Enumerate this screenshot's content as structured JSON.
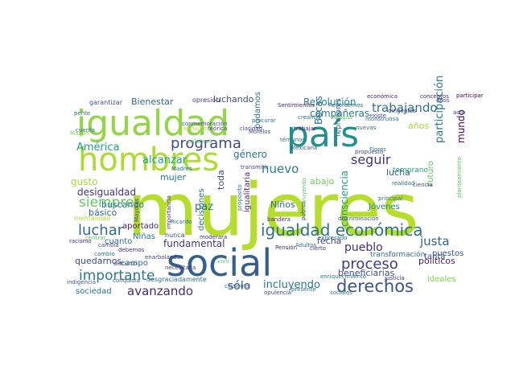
{
  "word_cloud": {
    "colormap": "viridis",
    "background": "#ffffff",
    "words": [
      {
        "text": "mujeres",
        "color": "#b5de2b"
      },
      {
        "text": "social",
        "color": "#35608d"
      },
      {
        "text": "país",
        "color": "#21918c"
      },
      {
        "text": "hombres",
        "color": "#addc30"
      },
      {
        "text": "igualdad",
        "color": "#90d743"
      },
      {
        "text": "igualdad económica",
        "color": "#2c728e"
      },
      {
        "text": "derechos",
        "color": "#3b528b"
      },
      {
        "text": "proceso",
        "color": "#443983"
      },
      {
        "text": "luchar",
        "color": "#31688e"
      },
      {
        "text": "siempre",
        "color": "#5ec962"
      },
      {
        "text": "programa",
        "color": "#3e4989"
      },
      {
        "text": "importante",
        "color": "#2a788e"
      },
      {
        "text": "avanzando",
        "color": "#482878"
      },
      {
        "text": "nuevo",
        "color": "#287c8e"
      },
      {
        "text": "trabajando",
        "color": "#2c728e"
      },
      {
        "text": "pueblo",
        "color": "#472d7b"
      },
      {
        "text": "justa",
        "color": "#35608d"
      },
      {
        "text": "seguir",
        "color": "#46327e"
      },
      {
        "text": "mundo",
        "color": "#440154"
      },
      {
        "text": "América",
        "color": "#1fa187"
      },
      {
        "text": "alcanzar",
        "color": "#20a386"
      },
      {
        "text": "Revolución",
        "color": "#25848e"
      },
      {
        "text": "sólo",
        "color": "#3b528b"
      },
      {
        "text": "incluyendo",
        "color": "#2a788e"
      },
      {
        "text": "participación",
        "color": "#2a788e"
      },
      {
        "text": "consciencia",
        "color": "#1fa187"
      },
      {
        "text": "paz",
        "color": "#2c728e"
      },
      {
        "text": "luchando",
        "color": "#3e4989"
      },
      {
        "text": "lucha",
        "color": "#35608d"
      },
      {
        "text": "fundamental",
        "color": "#453781"
      },
      {
        "text": "desigualdad",
        "color": "#46327e"
      },
      {
        "text": "género",
        "color": "#2c728e"
      },
      {
        "text": "compañeras",
        "color": "#2a788e"
      },
      {
        "text": "beneficiarias",
        "color": "#3b528b"
      },
      {
        "text": "quedarnos",
        "color": "#3e4989"
      },
      {
        "text": "Bienestar",
        "color": "#31688e"
      },
      {
        "text": "gusto",
        "color": "#a8db34"
      },
      {
        "text": "Niños",
        "color": "#2c728e"
      },
      {
        "text": "fecha",
        "color": "#443983"
      },
      {
        "text": "sociedad",
        "color": "#2c728e"
      },
      {
        "text": "Jóvenes",
        "color": "#26828e"
      },
      {
        "text": "políticos",
        "color": "#481f70"
      },
      {
        "text": "ideales",
        "color": "#86d549"
      },
      {
        "text": "básico",
        "color": "#31688e"
      },
      {
        "text": "buscando",
        "color": "#2c728e"
      },
      {
        "text": "cuanto",
        "color": "#2c728e"
      },
      {
        "text": "Niñas",
        "color": "#2c728e"
      },
      {
        "text": "campo",
        "color": "#31688e"
      },
      {
        "text": "aportado",
        "color": "#481f70"
      },
      {
        "text": "mujer",
        "color": "#2a788e"
      },
      {
        "text": "toda",
        "color": "#3e4989"
      },
      {
        "text": "podamos",
        "color": "#2c728e"
      },
      {
        "text": "abajo",
        "color": "#6ece58"
      },
      {
        "text": "Becas",
        "color": "#2c728e"
      },
      {
        "text": "años",
        "color": "#a8db34"
      },
      {
        "text": "tanta",
        "color": "#3e4989"
      },
      {
        "text": "puestos",
        "color": "#3b528b"
      },
      {
        "text": "Futuro",
        "color": "#5ec962"
      },
      {
        "text": "decisiones",
        "color": "#2c728e"
      },
      {
        "text": "igualitaria",
        "color": "#482878"
      },
      {
        "text": "represores",
        "color": "#31688e"
      },
      {
        "text": "transformación",
        "color": "#2c728e"
      },
      {
        "text": "temprano",
        "color": "#1fa187"
      },
      {
        "text": "garantizar",
        "color": "#3b528b"
      },
      {
        "text": "mentalidad",
        "color": "#b5de2b"
      },
      {
        "text": "opresión",
        "color": "#443983"
      },
      {
        "text": "Sentimientos",
        "color": "#482878"
      },
      {
        "text": "Recordemos",
        "color": "#2c728e"
      },
      {
        "text": "económica",
        "color": "#472d7b"
      },
      {
        "text": "conceptos",
        "color": "#482878"
      },
      {
        "text": "participar",
        "color": "#440154"
      },
      {
        "text": "cuenta",
        "color": "#2c728e"
      },
      {
        "text": "conmemoración",
        "color": "#3b528b"
      },
      {
        "text": "trabajar",
        "color": "#472d7b"
      },
      {
        "text": "nuevas",
        "color": "#2c728e"
      },
      {
        "text": "Morelos",
        "color": "#3e4989"
      },
      {
        "text": "términos",
        "color": "#2c728e"
      },
      {
        "text": "Mexicana",
        "color": "#35608d"
      },
      {
        "text": "propuesto",
        "color": "#3e4989"
      },
      {
        "text": "Flores",
        "color": "#2c728e"
      },
      {
        "text": "Madres",
        "color": "#2c728e"
      },
      {
        "text": "Mayores",
        "color": "#3e4989"
      },
      {
        "text": "importancia",
        "color": "#472d7b"
      },
      {
        "text": "Ricardo",
        "color": "#2c728e"
      },
      {
        "text": "nunca",
        "color": "#3e4989"
      },
      {
        "text": "moderara",
        "color": "#472d7b"
      },
      {
        "text": "bandera",
        "color": "#482878"
      },
      {
        "text": "discriminación",
        "color": "#3b528b"
      },
      {
        "text": "expresado",
        "color": "#2c728e"
      },
      {
        "text": "pobres",
        "color": "#482878"
      },
      {
        "text": "Pensión",
        "color": "#472d7b"
      },
      {
        "text": "cierto",
        "color": "#443983"
      },
      {
        "text": "vivir",
        "color": "#5ec962"
      },
      {
        "text": "indigencia",
        "color": "#3b528b"
      },
      {
        "text": "conquista",
        "color": "#35608d"
      },
      {
        "text": "desgraciadamente",
        "color": "#2c728e"
      },
      {
        "text": "clasismo",
        "color": "#2c728e"
      },
      {
        "text": "enriquecimiento",
        "color": "#2c728e"
      },
      {
        "text": "opulencia",
        "color": "#3e4989"
      },
      {
        "text": "presente",
        "color": "#2c728e"
      },
      {
        "text": "sociales",
        "color": "#2c728e"
      },
      {
        "text": "justicia",
        "color": "#472d7b"
      },
      {
        "text": "racismo",
        "color": "#472d7b"
      },
      {
        "text": "cambia",
        "color": "#3e4989"
      },
      {
        "text": "discurso",
        "color": "#3e4989"
      },
      {
        "text": "enarbolando",
        "color": "#3e4989"
      },
      {
        "text": "necesitada",
        "color": "#443983"
      },
      {
        "text": "debemos",
        "color": "#472d7b"
      },
      {
        "text": "procurar",
        "color": "#2c728e"
      },
      {
        "text": "claridad",
        "color": "#3e4989"
      },
      {
        "text": "teórica",
        "color": "#3e4989"
      },
      {
        "text": "escucho",
        "color": "#a8db34"
      },
      {
        "text": "Magón",
        "color": "#86d549"
      },
      {
        "text": "Amigas",
        "color": "#5ec962"
      },
      {
        "text": "principal",
        "color": "#2c728e"
      },
      {
        "text": "creando",
        "color": "#2c728e"
      },
      {
        "text": "realidad",
        "color": "#2c728e"
      },
      {
        "text": "ciencia",
        "color": "#3e4989"
      },
      {
        "text": "Dios",
        "color": "#3e4989"
      },
      {
        "text": "acto",
        "color": "#3e4989"
      },
      {
        "text": "existe",
        "color": "#3e4989"
      },
      {
        "text": "monstruosa",
        "color": "#2c728e"
      },
      {
        "text": "dirigentes",
        "color": "#3e4989"
      },
      {
        "text": "planteamiento",
        "color": "#5ec962"
      },
      {
        "text": "Adultos",
        "color": "#2c728e"
      },
      {
        "text": "Construyendo",
        "color": "#5ec962"
      },
      {
        "text": "palabras",
        "color": "#5ec962"
      },
      {
        "text": "propósito",
        "color": "#2c728e"
      },
      {
        "text": "transmitir",
        "color": "#3e4989"
      },
      {
        "text": "pente",
        "color": "#2c728e"
      },
      {
        "text": "cambio",
        "color": "#2c728e"
      },
      {
        "text": "centrar",
        "color": "#5ec962"
      }
    ]
  }
}
